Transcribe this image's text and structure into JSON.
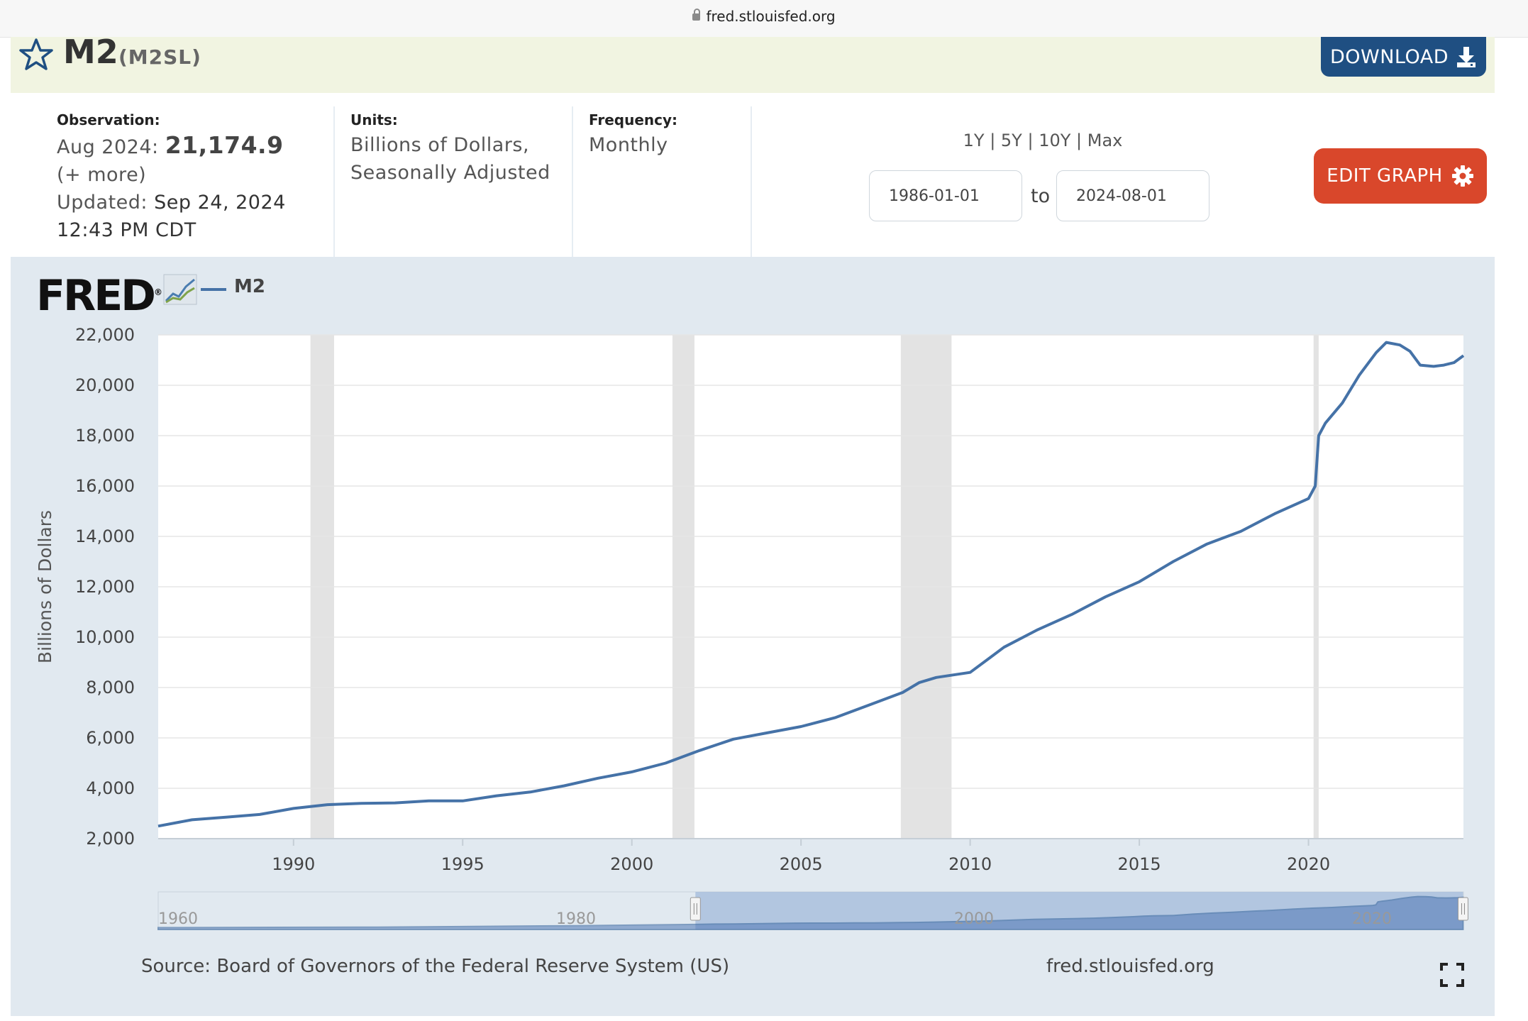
{
  "browser": {
    "url": "fred.stlouisfed.org"
  },
  "header": {
    "title": "M2",
    "series_id": "(M2SL)",
    "download_label": "DOWNLOAD"
  },
  "observation": {
    "label": "Observation:",
    "date": "Aug 2024:",
    "value": "21,174.9",
    "more": "(+ more)",
    "updated_label": "Updated:",
    "updated_date": "Sep 24, 2024",
    "updated_time": "12:43 PM CDT"
  },
  "units": {
    "label": "Units:",
    "line1": "Billions of Dollars,",
    "line2": "Seasonally Adjusted"
  },
  "frequency": {
    "label": "Frequency:",
    "value": "Monthly"
  },
  "range": {
    "options": [
      "1Y",
      "5Y",
      "10Y",
      "Max"
    ],
    "start": "1986-01-01",
    "to": "to",
    "end": "2024-08-01"
  },
  "edit_graph_label": "EDIT GRAPH",
  "logo_text": "FRED",
  "legend_name": "M2",
  "source": "Source: Board of Governors of the Federal Reserve System (US)",
  "site": "fred.stlouisfed.org",
  "colors": {
    "line": "#4572a7",
    "download": "#1f4f82",
    "edit": "#d9472b",
    "recession": "#e3e3e3"
  },
  "chart_data": {
    "type": "line",
    "ylabel": "Billions of Dollars",
    "xlim": [
      1986.0,
      2024.58
    ],
    "ylim": [
      2000,
      22000
    ],
    "yticks": [
      2000,
      4000,
      6000,
      8000,
      10000,
      12000,
      14000,
      16000,
      18000,
      20000,
      22000
    ],
    "ytick_labels": [
      "2,000",
      "4,000",
      "6,000",
      "8,000",
      "10,000",
      "12,000",
      "14,000",
      "16,000",
      "18,000",
      "20,000",
      "22,000"
    ],
    "xticks": [
      1990,
      1995,
      2000,
      2005,
      2010,
      2015,
      2020
    ],
    "xtick_labels": [
      "1990",
      "1995",
      "2000",
      "2005",
      "2010",
      "2015",
      "2020"
    ],
    "recessions": [
      [
        1990.5,
        1991.2
      ],
      [
        2001.2,
        2001.85
      ],
      [
        2007.95,
        2009.45
      ],
      [
        2020.15,
        2020.3
      ]
    ],
    "series": [
      {
        "name": "M2",
        "x": [
          1986.0,
          1987.0,
          1988.0,
          1989.0,
          1990.0,
          1991.0,
          1992.0,
          1993.0,
          1994.0,
          1995.0,
          1996.0,
          1997.0,
          1998.0,
          1999.0,
          2000.0,
          2001.0,
          2002.0,
          2003.0,
          2004.0,
          2005.0,
          2006.0,
          2007.0,
          2008.0,
          2008.5,
          2009.0,
          2010.0,
          2011.0,
          2012.0,
          2013.0,
          2014.0,
          2015.0,
          2016.0,
          2017.0,
          2018.0,
          2019.0,
          2020.0,
          2020.2,
          2020.3,
          2020.5,
          2021.0,
          2021.5,
          2022.0,
          2022.3,
          2022.7,
          2023.0,
          2023.3,
          2023.7,
          2024.0,
          2024.3,
          2024.58
        ],
        "y": [
          2500,
          2750,
          2850,
          2960,
          3200,
          3350,
          3400,
          3420,
          3500,
          3500,
          3700,
          3850,
          4100,
          4400,
          4650,
          5000,
          5500,
          5950,
          6200,
          6450,
          6800,
          7300,
          7800,
          8200,
          8400,
          8600,
          9600,
          10300,
          10900,
          11600,
          12200,
          13000,
          13700,
          14200,
          14900,
          15500,
          16000,
          18000,
          18500,
          19300,
          20400,
          21300,
          21700,
          21600,
          21350,
          20800,
          20750,
          20800,
          20900,
          21174.9
        ]
      }
    ]
  },
  "navigator": {
    "labels": [
      "1960",
      "1980",
      "2000",
      "2020"
    ]
  }
}
